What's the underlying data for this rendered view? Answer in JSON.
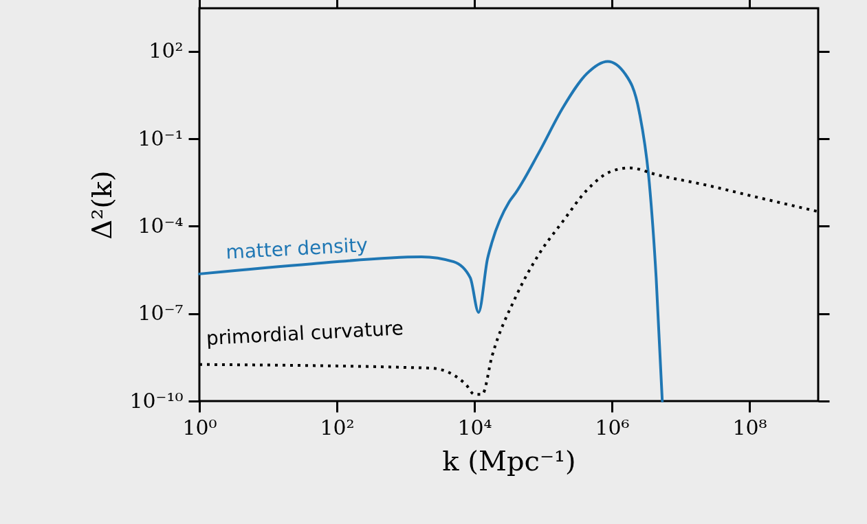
{
  "chart_data": {
    "type": "line",
    "xlabel": "k (Mpc⁻¹)",
    "ylabel": "Δ²(k)",
    "log": "xy",
    "marker": "none",
    "xlim": [
      1,
      1000000000.0
    ],
    "ylim": [
      1e-10,
      3000.0
    ],
    "xticks": [
      {
        "value": 1,
        "label": "10⁰"
      },
      {
        "value": 100,
        "label": "10²"
      },
      {
        "value": 10000.0,
        "label": "10⁴"
      },
      {
        "value": 1000000.0,
        "label": "10⁶"
      },
      {
        "value": 100000000.0,
        "label": "10⁸"
      }
    ],
    "yticks": [
      {
        "value": 1e-10,
        "label": "10⁻¹⁰"
      },
      {
        "value": 1e-07,
        "label": "10⁻⁷"
      },
      {
        "value": 0.0001,
        "label": "10⁻⁴"
      },
      {
        "value": 0.1,
        "label": "10⁻¹"
      },
      {
        "value": 100,
        "label": "10²"
      }
    ],
    "series": [
      {
        "name": "matter density",
        "color": "#1f77b4",
        "line_style": "solid",
        "x": [
          1,
          43,
          1700.0,
          5000.0,
          8700.0,
          11500.0,
          15500.0,
          18000.0,
          32000.0,
          40000.0,
          87000.0,
          195000.0,
          430000.0,
          870000.0,
          1550000.0,
          2500000.0,
          3500000.0,
          4400000.0,
          5400000.0
        ],
        "values": [
          2.3e-06,
          5.1e-06,
          8.9e-06,
          6e-06,
          1.7e-06,
          1.1e-07,
          7.6e-06,
          2.8e-05,
          0.00068,
          0.0014,
          0.034,
          1.2,
          17,
          45,
          17,
          0.83,
          0.003,
          1.7e-06,
          1e-10
        ]
      },
      {
        "name": "primordial curvature",
        "color": "#000000",
        "line_style": "dotted",
        "x": [
          1,
          2300.0,
          5000.0,
          7600.0,
          10000.0,
          13000.0,
          18000.0,
          40000.0,
          87000.0,
          195000.0,
          430000.0,
          950000.0,
          1800000.0,
          4800000.0,
          23000000.0,
          115000000.0,
          980000000.0
        ],
        "values": [
          1.8e-09,
          1.35e-09,
          7.8e-10,
          3.6e-10,
          1.7e-10,
          1.7e-10,
          3.4e-09,
          3.8e-07,
          1.1e-05,
          0.00015,
          0.0017,
          0.0074,
          0.01,
          0.0056,
          0.0026,
          0.00105,
          0.00032
        ]
      }
    ]
  }
}
